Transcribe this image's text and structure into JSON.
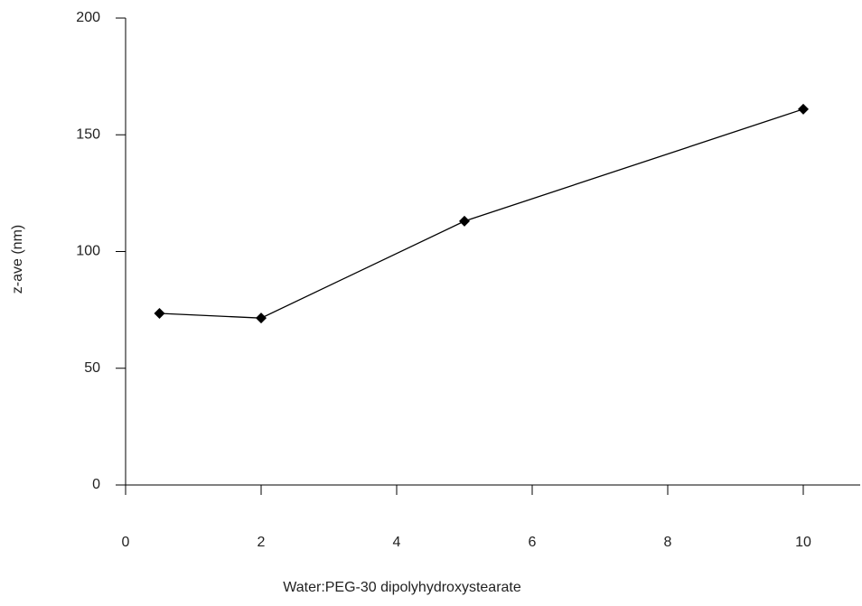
{
  "chart_data": {
    "type": "line",
    "x_label": "Water:PEG-30 dipolyhydroxystearate",
    "y_label": "z-ave (nm)",
    "x": [
      0.5,
      2,
      5,
      10
    ],
    "series": [
      {
        "color": "#000000",
        "values": [
          73.5,
          71.5,
          113,
          161
        ]
      }
    ],
    "xlim": [
      0,
      10.84
    ],
    "xticks": [
      0,
      2,
      4,
      6,
      8,
      10
    ],
    "ylim": [
      0,
      200
    ],
    "yticks": [
      0,
      50,
      100,
      150,
      200
    ],
    "grid": false
  }
}
